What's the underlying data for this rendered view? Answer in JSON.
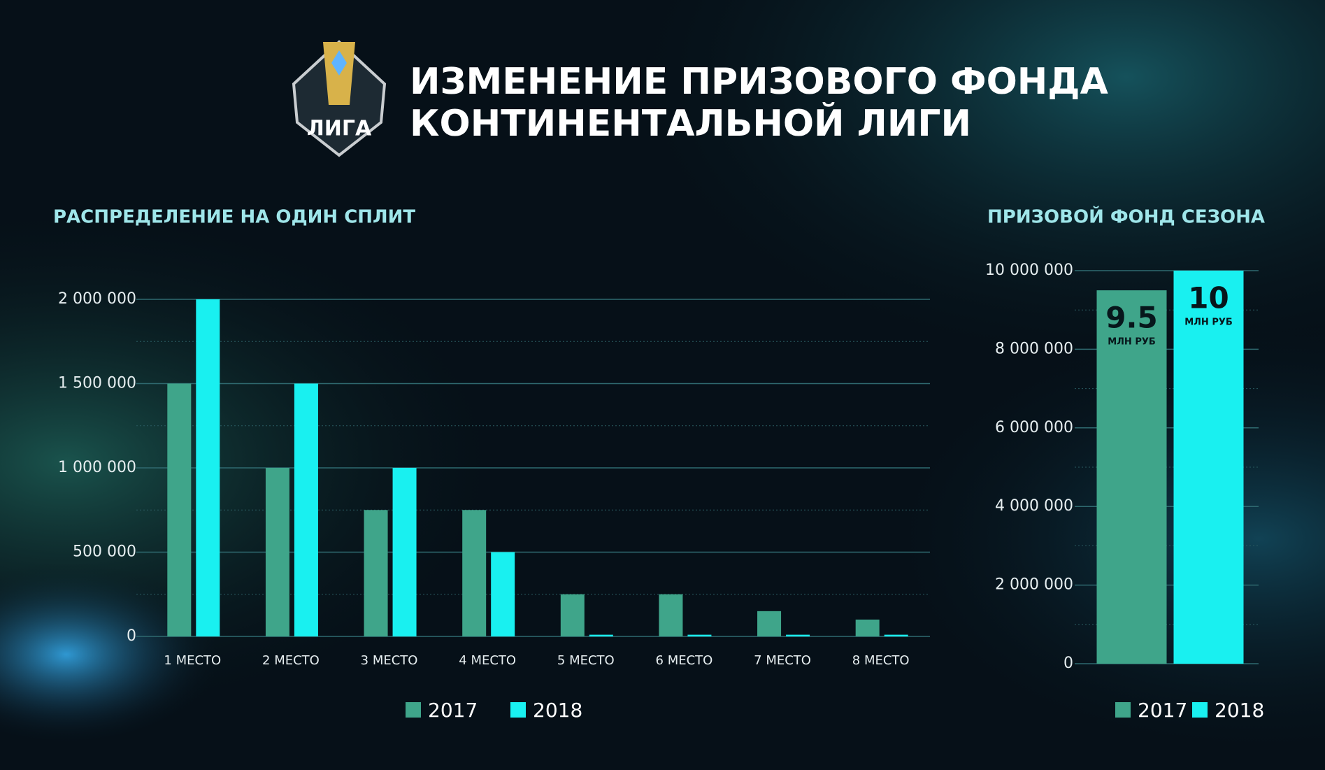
{
  "header": {
    "title_lines": [
      "ИЗМЕНЕНИЕ ПРИЗОВОГО ФОНДА",
      "КОНТИНЕНТАЛЬНОЙ ЛИГИ"
    ],
    "logo_text": "ЛИГА"
  },
  "chart_data": [
    {
      "type": "bar",
      "title": "РАСПРЕДЕЛЕНИЕ НА ОДИН СПЛИТ",
      "categories": [
        "1 МЕСТО",
        "2 МЕСТО",
        "3 МЕСТО",
        "4 МЕСТО",
        "5 МЕСТО",
        "6 МЕСТО",
        "7 МЕСТО",
        "8 МЕСТО"
      ],
      "series": [
        {
          "name": "2017",
          "color": "#3fa58a",
          "values": [
            1500000,
            1000000,
            750000,
            750000,
            250000,
            250000,
            150000,
            100000
          ]
        },
        {
          "name": "2018",
          "color": "#19f0f0",
          "values": [
            2000000,
            1500000,
            1000000,
            500000,
            10000,
            10000,
            10000,
            10000
          ]
        }
      ],
      "ylim": [
        0,
        2000000
      ],
      "yticks": [
        0,
        {
          "value": 500000,
          "label": "500 000"
        },
        {
          "value": 1000000,
          "label": "1 000 000"
        },
        {
          "value": 1500000,
          "label": "1 500 000"
        },
        {
          "value": 2000000,
          "label": "2 000 000"
        }
      ],
      "grid": true,
      "legend": "bottom"
    },
    {
      "type": "bar",
      "title": "ПРИЗОВОЙ ФОНД СЕЗОНА",
      "categories": [
        null
      ],
      "series": [
        {
          "name": "2017",
          "color": "#3fa58a",
          "values": [
            9500000
          ],
          "value_labels": [
            "9.5"
          ]
        },
        {
          "name": "2018",
          "color": "#19f0f0",
          "values": [
            10000000
          ],
          "value_labels": [
            "10"
          ]
        }
      ],
      "unit_label": "МЛН РУБ",
      "ylim": [
        0,
        10000000
      ],
      "yticks": [
        0,
        {
          "value": 2000000,
          "label": "2 000 000"
        },
        {
          "value": 4000000,
          "label": "4 000 000"
        },
        {
          "value": 6000000,
          "label": "6 000 000"
        },
        {
          "value": 8000000,
          "label": "8 000 000"
        },
        {
          "value": 10000000,
          "label": "10 000 000"
        }
      ],
      "grid": true,
      "legend": "bottom"
    }
  ]
}
